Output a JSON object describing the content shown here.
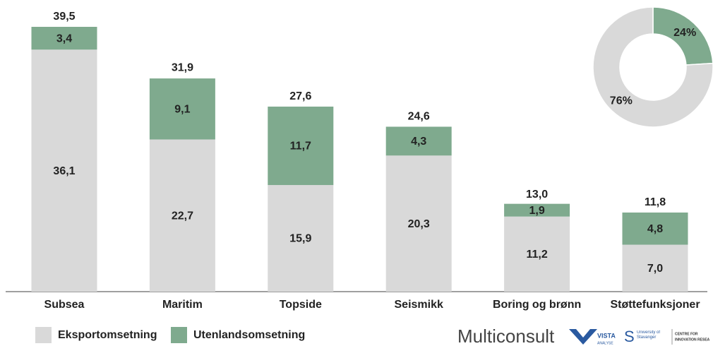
{
  "chart_data": [
    {
      "type": "bar",
      "stacked": true,
      "categories": [
        "Subsea",
        "Maritim",
        "Topside",
        "Seismikk",
        "Boring og brønn",
        "Støttefunksjoner"
      ],
      "series": [
        {
          "name": "Eksportomsetning",
          "color": "#d9d9d9",
          "values": [
            36.1,
            22.7,
            15.9,
            20.3,
            11.2,
            7.0
          ],
          "value_labels": [
            "36,1",
            "22,7",
            "15,9",
            "20,3",
            "11,2",
            "7,0"
          ]
        },
        {
          "name": "Utenlandsomsetning",
          "color": "#7faa8e",
          "values": [
            3.4,
            9.1,
            11.7,
            4.3,
            1.9,
            4.8
          ],
          "value_labels": [
            "3,4",
            "9,1",
            "11,7",
            "4,3",
            "1,9",
            "4,8"
          ]
        }
      ],
      "totals": [
        39.5,
        31.9,
        27.6,
        24.6,
        13.0,
        11.8
      ],
      "total_labels": [
        "39,5",
        "31,9",
        "27,6",
        "24,6",
        "13,0",
        "11,8"
      ],
      "legend": "bottom-left"
    },
    {
      "type": "pie",
      "donut": true,
      "values": [
        24,
        76
      ],
      "value_labels": [
        "24%",
        "76%"
      ],
      "colors": [
        "#7faa8e",
        "#d9d9d9"
      ]
    }
  ],
  "footer_logos": {
    "multiconsult": "Multiconsult",
    "vista": "VISTA",
    "vista_sub": "ANALYSE",
    "uis": "University of Stavanger",
    "cir_1": "CENTRE FOR",
    "cir_2": "INNOVATION RESEA"
  }
}
